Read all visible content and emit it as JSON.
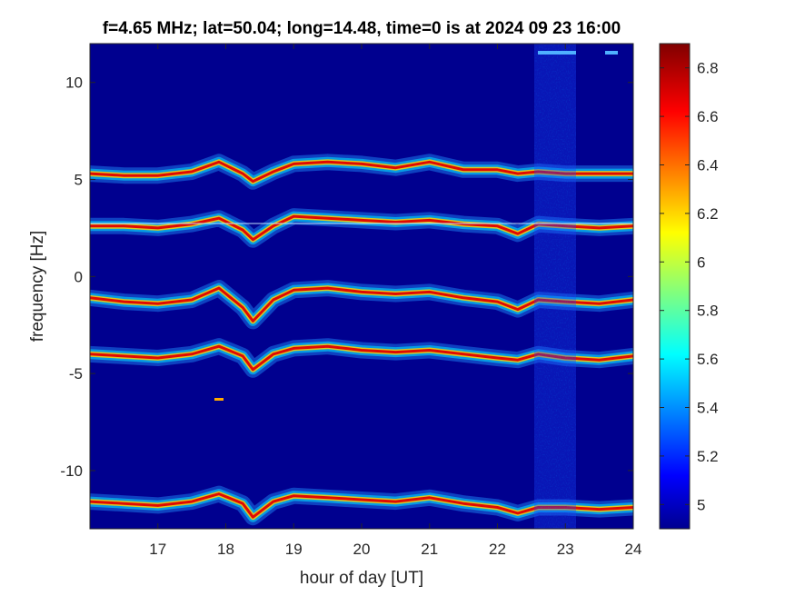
{
  "chart_data": {
    "type": "heatmap",
    "title": "f=4.65 MHz;  lat=50.04; long=14.48, time=0 is at 2024 09 23 16:00",
    "xlabel": "hour of day [UT]",
    "ylabel": "frequency [Hz]",
    "xlim": [
      16,
      24
    ],
    "ylim": [
      -13,
      12
    ],
    "x_ticks": [
      17,
      18,
      19,
      20,
      21,
      22,
      23,
      24
    ],
    "y_ticks": [
      -10,
      -5,
      0,
      5,
      10
    ],
    "colorbar": {
      "range": [
        4.9,
        6.9
      ],
      "ticks": [
        5,
        5.2,
        5.4,
        5.6,
        5.8,
        6,
        6.2,
        6.4,
        6.6,
        6.8
      ],
      "colormap": "jet"
    },
    "series": [
      {
        "x": [
          16,
          16.5,
          17,
          17.5,
          17.9,
          18.25,
          18.4,
          18.7,
          19,
          19.5,
          20,
          20.5,
          21,
          21.5,
          22,
          22.3,
          22.6,
          23,
          23.5,
          24
        ],
        "y": [
          5.3,
          5.2,
          5.2,
          5.4,
          5.9,
          5.3,
          4.9,
          5.4,
          5.8,
          5.9,
          5.8,
          5.6,
          5.9,
          5.5,
          5.5,
          5.3,
          5.4,
          5.3,
          5.3,
          5.3
        ]
      },
      {
        "x": [
          16,
          16.5,
          17,
          17.5,
          17.9,
          18.25,
          18.4,
          18.7,
          19,
          19.5,
          20,
          20.5,
          21,
          21.5,
          22,
          22.3,
          22.6,
          23,
          23.5,
          24
        ],
        "y": [
          2.6,
          2.6,
          2.5,
          2.7,
          3.0,
          2.4,
          1.9,
          2.6,
          3.1,
          3.0,
          2.9,
          2.8,
          2.9,
          2.7,
          2.6,
          2.2,
          2.7,
          2.6,
          2.5,
          2.6
        ]
      },
      {
        "x": [
          16,
          16.5,
          17,
          17.5,
          17.9,
          18.25,
          18.4,
          18.7,
          19,
          19.5,
          20,
          20.5,
          21,
          21.5,
          22,
          22.3,
          22.6,
          23,
          23.5,
          24
        ],
        "y": [
          -1.1,
          -1.3,
          -1.4,
          -1.2,
          -0.6,
          -1.6,
          -2.3,
          -1.2,
          -0.7,
          -0.6,
          -0.8,
          -0.9,
          -0.8,
          -1.1,
          -1.3,
          -1.7,
          -1.2,
          -1.3,
          -1.4,
          -1.2
        ]
      },
      {
        "x": [
          16,
          16.5,
          17,
          17.5,
          17.9,
          18.25,
          18.4,
          18.7,
          19,
          19.5,
          20,
          20.5,
          21,
          21.5,
          22,
          22.3,
          22.6,
          23,
          23.5,
          24
        ],
        "y": [
          -4.0,
          -4.1,
          -4.2,
          -4.0,
          -3.6,
          -4.1,
          -4.8,
          -4.0,
          -3.7,
          -3.6,
          -3.8,
          -3.9,
          -3.8,
          -4.0,
          -4.2,
          -4.3,
          -4.0,
          -4.2,
          -4.3,
          -4.1
        ]
      },
      {
        "x": [
          16,
          16.5,
          17,
          17.5,
          17.9,
          18.25,
          18.4,
          18.7,
          19,
          19.5,
          20,
          20.5,
          21,
          21.5,
          22,
          22.3,
          22.6,
          23,
          23.5,
          24
        ],
        "y": [
          -11.6,
          -11.7,
          -11.8,
          -11.6,
          -11.2,
          -11.7,
          -12.4,
          -11.6,
          -11.3,
          -11.4,
          -11.5,
          -11.6,
          -11.4,
          -11.7,
          -11.9,
          -12.2,
          -11.9,
          -11.9,
          -12.0,
          -11.9
        ]
      }
    ]
  }
}
